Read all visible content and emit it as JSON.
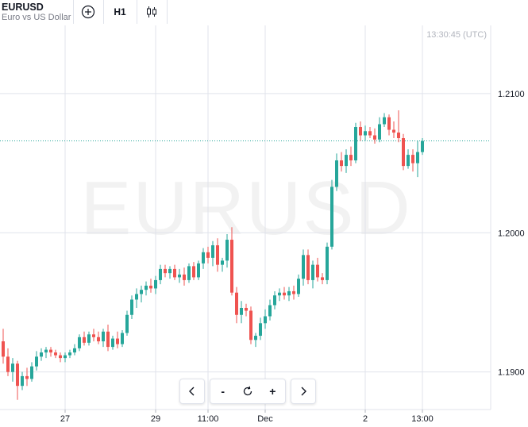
{
  "symbol": {
    "ticker": "EURUSD",
    "description": "Euro vs US Dollar"
  },
  "toolbar": {
    "add_icon": "plus-circle-icon",
    "timeframe_label": "H1",
    "chart_type_icon": "candlestick-icon"
  },
  "watermark": "EURUSD",
  "clock": "13:30:45 (UTC)",
  "controls": {
    "scroll_left_icon": "chevron-left-icon",
    "zoom_out_label": "-",
    "reset_icon": "reset-icon",
    "zoom_in_label": "+",
    "scroll_right_icon": "chevron-right-icon"
  },
  "colors": {
    "up": "#26a69a",
    "down": "#ef5350",
    "grid": "#e0e3eb",
    "price_line": "#26a69a"
  },
  "chart_data": {
    "type": "candlestick",
    "ylim": [
      1.1873,
      1.2149
    ],
    "price_ticks": [
      "1.2100",
      "1.2000",
      "1.1900"
    ],
    "x_ticks": [
      {
        "label": "27",
        "index": 13
      },
      {
        "label": "29",
        "index": 32
      },
      {
        "label": "11:00",
        "index": 43
      },
      {
        "label": "Dec",
        "index": 55
      },
      {
        "label": "2",
        "index": 76
      },
      {
        "label": "13:00",
        "index": 88
      }
    ],
    "last_price": 1.2066,
    "candles": [
      [
        1.1922,
        1.1931,
        1.1906,
        1.1911
      ],
      [
        1.1911,
        1.1917,
        1.1897,
        1.19
      ],
      [
        1.19,
        1.191,
        1.1893,
        1.1906
      ],
      [
        1.1906,
        1.1908,
        1.188,
        1.189
      ],
      [
        1.189,
        1.19,
        1.1887,
        1.1897
      ],
      [
        1.1897,
        1.1903,
        1.189,
        1.1895
      ],
      [
        1.1895,
        1.1907,
        1.1893,
        1.1904
      ],
      [
        1.1904,
        1.1915,
        1.1901,
        1.1911
      ],
      [
        1.1911,
        1.1917,
        1.1908,
        1.1914
      ],
      [
        1.1914,
        1.1918,
        1.191,
        1.1916
      ],
      [
        1.1916,
        1.1918,
        1.1911,
        1.1914
      ],
      [
        1.1914,
        1.1916,
        1.191,
        1.1912
      ],
      [
        1.1912,
        1.1914,
        1.1907,
        1.191
      ],
      [
        1.191,
        1.1914,
        1.1907,
        1.1912
      ],
      [
        1.1912,
        1.1916,
        1.191,
        1.1914
      ],
      [
        1.1914,
        1.192,
        1.1912,
        1.1917
      ],
      [
        1.1917,
        1.1927,
        1.1915,
        1.1925
      ],
      [
        1.1925,
        1.1929,
        1.1919,
        1.1921
      ],
      [
        1.1921,
        1.1929,
        1.1919,
        1.1927
      ],
      [
        1.1927,
        1.1931,
        1.1922,
        1.1925
      ],
      [
        1.1925,
        1.1929,
        1.192,
        1.1922
      ],
      [
        1.1922,
        1.1931,
        1.1918,
        1.1929
      ],
      [
        1.1929,
        1.1934,
        1.1915,
        1.1918
      ],
      [
        1.1918,
        1.1926,
        1.1916,
        1.1924
      ],
      [
        1.1924,
        1.1929,
        1.1917,
        1.192
      ],
      [
        1.192,
        1.193,
        1.1918,
        1.1928
      ],
      [
        1.1928,
        1.1944,
        1.1926,
        1.1941
      ],
      [
        1.1941,
        1.1955,
        1.1938,
        1.1952
      ],
      [
        1.1952,
        1.196,
        1.1946,
        1.1956
      ],
      [
        1.1956,
        1.1962,
        1.195,
        1.1959
      ],
      [
        1.1959,
        1.1965,
        1.1955,
        1.1962
      ],
      [
        1.1962,
        1.1967,
        1.1957,
        1.196
      ],
      [
        1.196,
        1.1969,
        1.1956,
        1.1966
      ],
      [
        1.1966,
        1.1977,
        1.1963,
        1.1974
      ],
      [
        1.1974,
        1.1977,
        1.1968,
        1.1971
      ],
      [
        1.1971,
        1.1976,
        1.1967,
        1.1974
      ],
      [
        1.1974,
        1.1977,
        1.1966,
        1.1968
      ],
      [
        1.1968,
        1.1974,
        1.1964,
        1.197
      ],
      [
        1.197,
        1.1975,
        1.1962,
        1.1966
      ],
      [
        1.1966,
        1.1978,
        1.1964,
        1.1976
      ],
      [
        1.1976,
        1.1979,
        1.1966,
        1.1968
      ],
      [
        1.1968,
        1.198,
        1.1966,
        1.1978
      ],
      [
        1.1978,
        1.1989,
        1.1974,
        1.1986
      ],
      [
        1.1986,
        1.199,
        1.1978,
        1.1982
      ],
      [
        1.1982,
        1.1994,
        1.1976,
        1.1991
      ],
      [
        1.1991,
        1.1996,
        1.1972,
        1.1977
      ],
      [
        1.1977,
        1.1982,
        1.1972,
        1.198
      ],
      [
        1.198,
        1.1999,
        1.1975,
        1.1995
      ],
      [
        1.1995,
        1.2004,
        1.1955,
        1.1957
      ],
      [
        1.1957,
        1.1961,
        1.1935,
        1.1941
      ],
      [
        1.1941,
        1.1951,
        1.1935,
        1.1946
      ],
      [
        1.1946,
        1.1949,
        1.194,
        1.1944
      ],
      [
        1.1944,
        1.1947,
        1.192,
        1.1923
      ],
      [
        1.1923,
        1.1928,
        1.1918,
        1.1926
      ],
      [
        1.1926,
        1.1939,
        1.1923,
        1.1935
      ],
      [
        1.1935,
        1.1945,
        1.1931,
        1.194
      ],
      [
        1.194,
        1.1952,
        1.1937,
        1.1948
      ],
      [
        1.1948,
        1.1958,
        1.1945,
        1.1955
      ],
      [
        1.1955,
        1.196,
        1.1951,
        1.1957
      ],
      [
        1.1957,
        1.1961,
        1.1952,
        1.1955
      ],
      [
        1.1955,
        1.1961,
        1.1951,
        1.1958
      ],
      [
        1.1958,
        1.1962,
        1.1952,
        1.1956
      ],
      [
        1.1956,
        1.197,
        1.1954,
        1.1967
      ],
      [
        1.1967,
        1.1988,
        1.1962,
        1.1984
      ],
      [
        1.1984,
        1.1988,
        1.1963,
        1.1966
      ],
      [
        1.1966,
        1.198,
        1.196,
        1.1977
      ],
      [
        1.1977,
        1.1982,
        1.1965,
        1.1968
      ],
      [
        1.1968,
        1.1971,
        1.1963,
        1.1966
      ],
      [
        1.1966,
        1.1993,
        1.1963,
        1.199
      ],
      [
        1.199,
        1.2038,
        1.1988,
        1.2033
      ],
      [
        1.2033,
        1.2057,
        1.203,
        1.2052
      ],
      [
        1.2052,
        1.2058,
        1.2044,
        1.2048
      ],
      [
        1.2048,
        1.206,
        1.2043,
        1.2056
      ],
      [
        1.2056,
        1.2062,
        1.2048,
        1.2052
      ],
      [
        1.2052,
        1.2079,
        1.205,
        1.2076
      ],
      [
        1.2076,
        1.208,
        1.2066,
        1.207
      ],
      [
        1.207,
        1.2077,
        1.2066,
        1.2073
      ],
      [
        1.2073,
        1.2076,
        1.2068,
        1.207
      ],
      [
        1.207,
        1.2075,
        1.2064,
        1.2067
      ],
      [
        1.2067,
        1.2083,
        1.2065,
        1.2078
      ],
      [
        1.2078,
        1.2086,
        1.2076,
        1.2083
      ],
      [
        1.2083,
        1.2085,
        1.207,
        1.2074
      ],
      [
        1.2074,
        1.208,
        1.2068,
        1.2072
      ],
      [
        1.2072,
        1.2088,
        1.2065,
        1.2068
      ],
      [
        1.2068,
        1.2071,
        1.2045,
        1.2048
      ],
      [
        1.2048,
        1.206,
        1.2046,
        1.2056
      ],
      [
        1.2056,
        1.206,
        1.2044,
        1.205
      ],
      [
        1.205,
        1.2066,
        1.204,
        1.2058
      ],
      [
        1.2058,
        1.2068,
        1.2056,
        1.2066
      ]
    ]
  }
}
